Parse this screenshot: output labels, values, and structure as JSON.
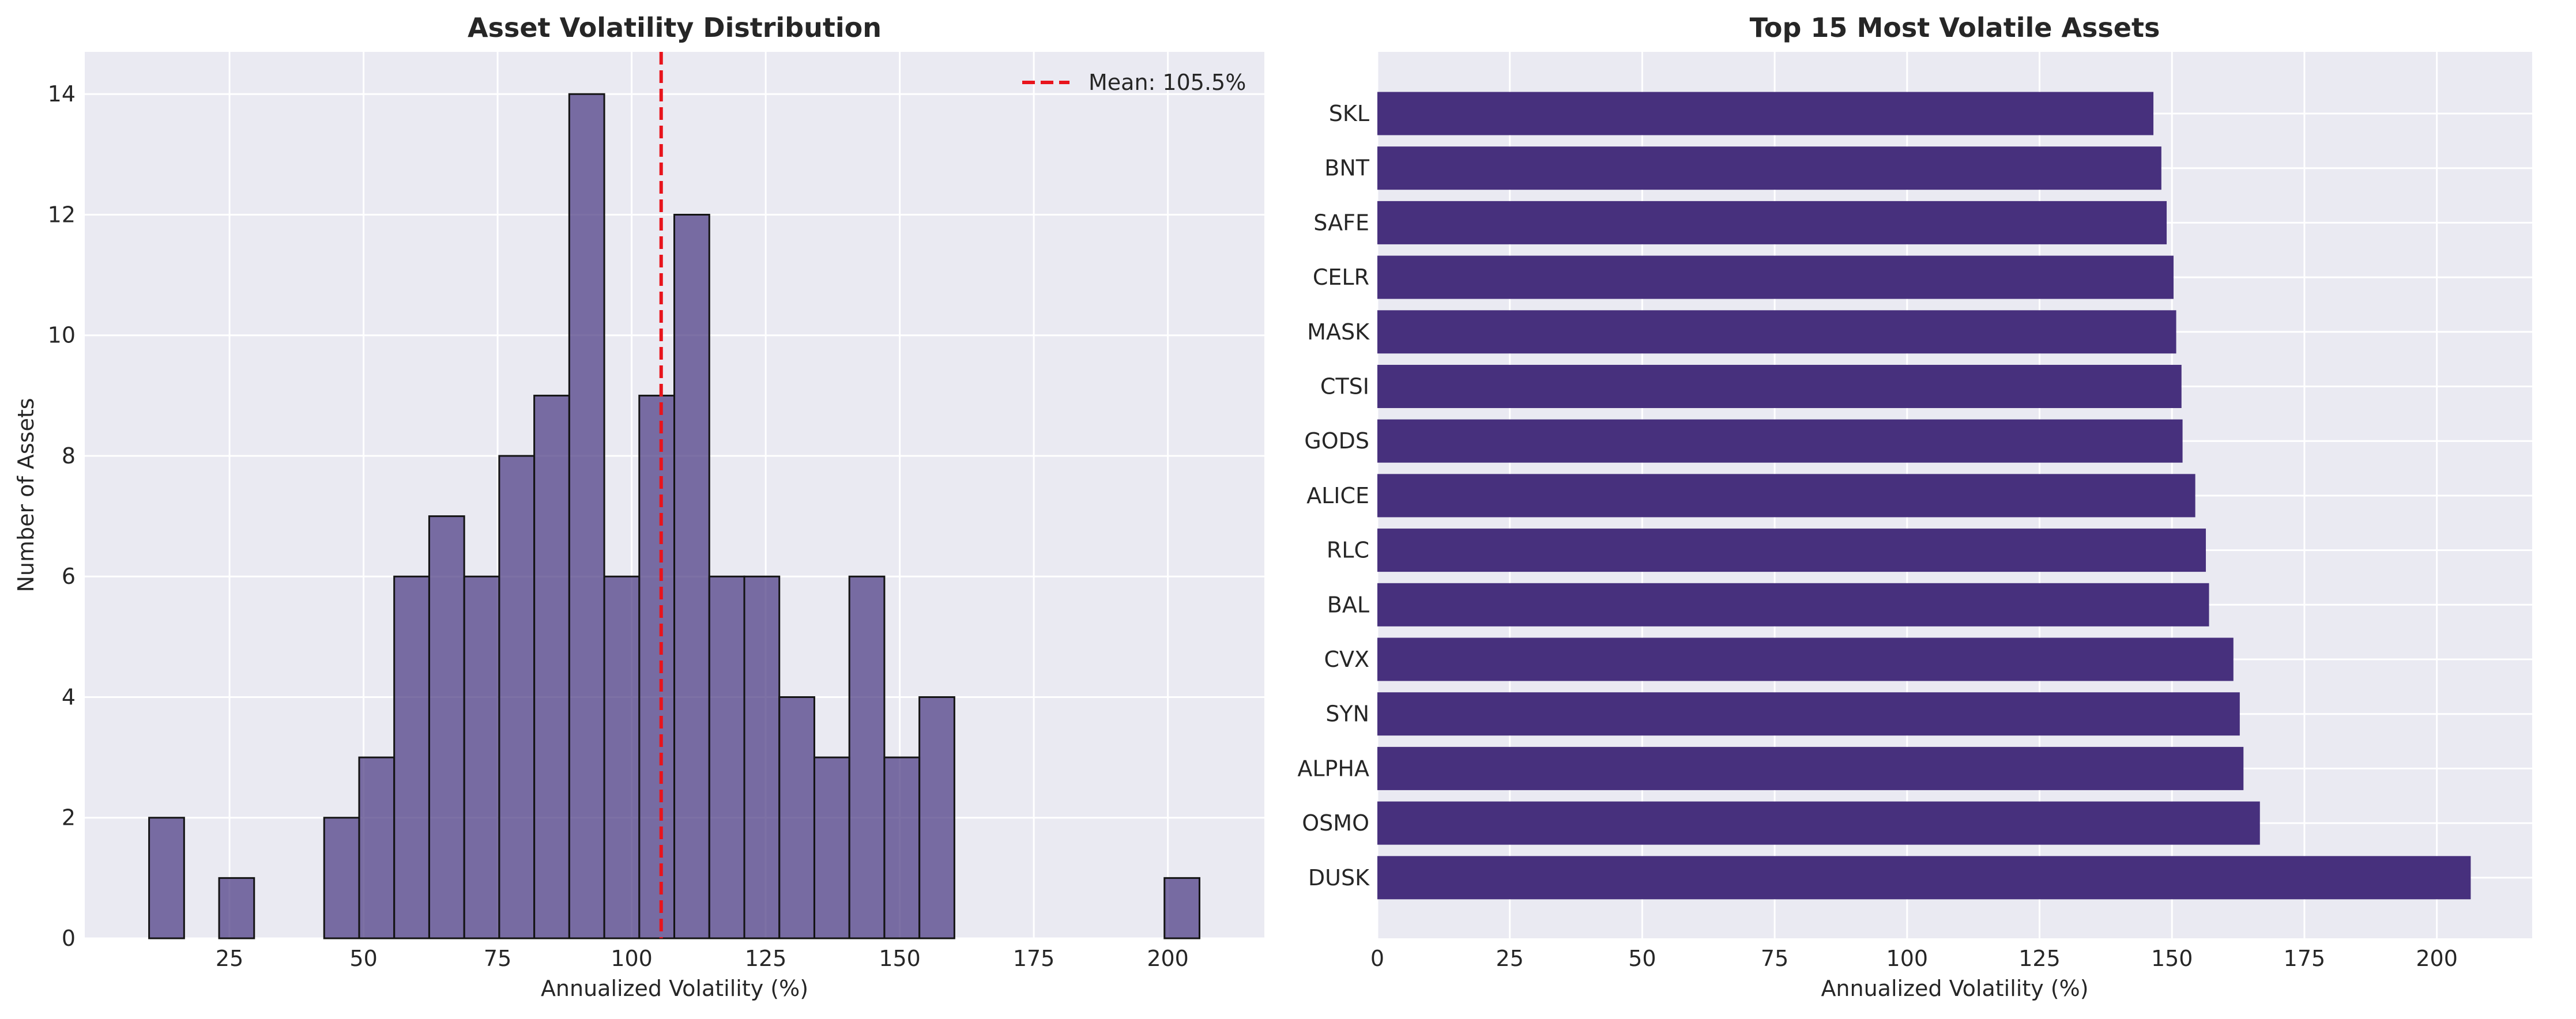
{
  "chart_data": [
    {
      "type": "bar",
      "subtype": "histogram",
      "title": "Asset Volatility Distribution",
      "xlabel": "Annualized Volatility (%)",
      "ylabel": "Number of Assets",
      "xlim": [
        -2,
        218
      ],
      "ylim": [
        0,
        14.7
      ],
      "xticks": [
        25,
        50,
        75,
        100,
        125,
        150,
        175,
        200
      ],
      "yticks": [
        0,
        2,
        4,
        6,
        8,
        10,
        12,
        14
      ],
      "bin_start": 10,
      "bin_width": 6.53,
      "counts": [
        2,
        0,
        1,
        0,
        0,
        2,
        3,
        6,
        7,
        6,
        8,
        9,
        14,
        6,
        9,
        12,
        6,
        6,
        4,
        3,
        6,
        3,
        4,
        0,
        0,
        0,
        0,
        0,
        0,
        1
      ],
      "bar_color": "#4b3a82",
      "mean": 105.5,
      "mean_line_color": "#e8141c",
      "legend": "Mean: 105.5%",
      "legend_position": "top-right",
      "grid": true
    },
    {
      "type": "bar",
      "orientation": "horizontal",
      "title": "Top 15 Most Volatile Assets",
      "xlabel": "Annualized Volatility (%)",
      "ylabel": "",
      "xlim": [
        0,
        218
      ],
      "xticks": [
        0,
        25,
        50,
        75,
        100,
        125,
        150,
        175,
        200
      ],
      "categories": [
        "SKL",
        "BNT",
        "SAFE",
        "CELR",
        "MASK",
        "CTSI",
        "GODS",
        "ALICE",
        "RLC",
        "BAL",
        "CVX",
        "SYN",
        "ALPHA",
        "OSMO",
        "DUSK"
      ],
      "values": [
        146.5,
        148.0,
        149.0,
        150.3,
        150.8,
        151.8,
        152.0,
        154.4,
        156.4,
        157.0,
        161.6,
        162.8,
        163.5,
        166.6,
        206.4
      ],
      "bar_color": "#47307d",
      "grid": true
    }
  ]
}
